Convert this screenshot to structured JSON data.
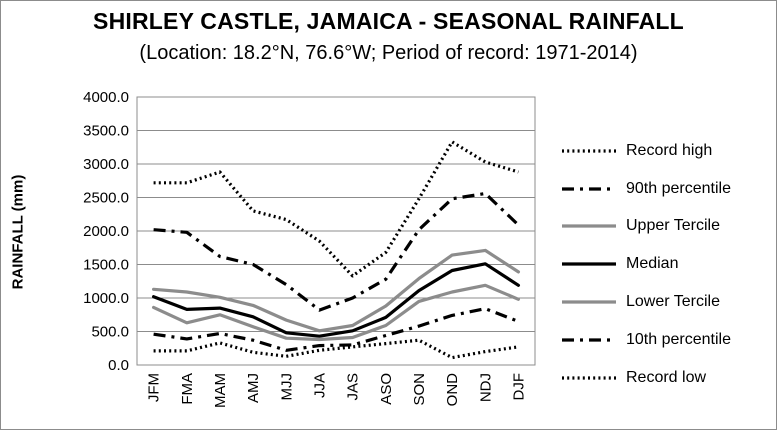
{
  "chart_data": {
    "type": "line",
    "title": "SHIRLEY CASTLE, JAMAICA - SEASONAL RAINFALL",
    "subtitle": "(Location: 18.2°N, 76.6°W; Period of record: 1971-2014)",
    "xlabel": "",
    "ylabel": "RAINFALL (mm)",
    "ylim": [
      0,
      4000
    ],
    "yticks": [
      "0.0",
      "500.0",
      "1000.0",
      "1500.0",
      "2000.0",
      "2500.0",
      "3000.0",
      "3500.0",
      "4000.0"
    ],
    "grid": true,
    "legend_position": "right",
    "categories": [
      "JFM",
      "FMA",
      "MAM",
      "AMJ",
      "MJJ",
      "JJA",
      "JAS",
      "ASO",
      "SON",
      "OND",
      "NDJ",
      "DJF"
    ],
    "series": [
      {
        "name": "Record high",
        "color": "#000000",
        "style": "dotted",
        "values": [
          2720,
          2720,
          2880,
          2300,
          2170,
          1850,
          1330,
          1680,
          2480,
          3330,
          3030,
          2880
        ]
      },
      {
        "name": "90th percentile",
        "color": "#000000",
        "style": "dashdot",
        "values": [
          2020,
          1980,
          1620,
          1500,
          1200,
          820,
          1000,
          1280,
          2020,
          2480,
          2560,
          2090
        ]
      },
      {
        "name": "Upper Tercile",
        "color": "#8c8c8c",
        "style": "solid",
        "values": [
          1130,
          1090,
          1010,
          890,
          670,
          510,
          590,
          880,
          1290,
          1640,
          1710,
          1390
        ]
      },
      {
        "name": "Median",
        "color": "#000000",
        "style": "solid",
        "values": [
          1020,
          830,
          850,
          720,
          480,
          430,
          510,
          710,
          1110,
          1410,
          1510,
          1190
        ]
      },
      {
        "name": "Lower Tercile",
        "color": "#8c8c8c",
        "style": "solid",
        "values": [
          860,
          630,
          750,
          570,
          400,
          380,
          410,
          590,
          950,
          1090,
          1190,
          980
        ]
      },
      {
        "name": "10th percentile",
        "color": "#000000",
        "style": "dashdot",
        "values": [
          460,
          390,
          470,
          370,
          220,
          290,
          300,
          440,
          580,
          740,
          840,
          650
        ]
      },
      {
        "name": "Record low",
        "color": "#000000",
        "style": "dotted",
        "values": [
          210,
          210,
          330,
          190,
          130,
          220,
          270,
          320,
          370,
          110,
          200,
          270
        ]
      }
    ]
  }
}
